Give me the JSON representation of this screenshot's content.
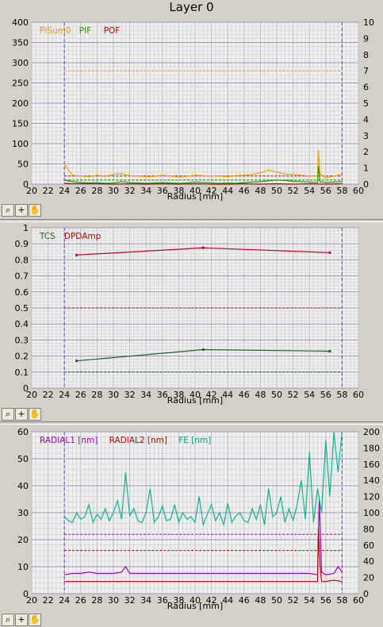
{
  "window": {
    "title": "Layer 0"
  },
  "toolbar_icons": [
    "zoom-icon",
    "crosshair-icon",
    "pan-hand-icon"
  ],
  "chart_data": [
    {
      "type": "line",
      "xlabel": "Radius [mm]",
      "xlim": [
        20,
        60
      ],
      "xticks": [
        20,
        22,
        24,
        26,
        28,
        30,
        32,
        34,
        36,
        38,
        40,
        42,
        44,
        46,
        48,
        50,
        52,
        54,
        56,
        58,
        60
      ],
      "ylim_left": [
        0,
        400
      ],
      "yticks_left": [
        0,
        50,
        100,
        150,
        200,
        250,
        300,
        350,
        400
      ],
      "ylim_right": [
        0,
        10
      ],
      "yticks_right": [
        0,
        1,
        2,
        3,
        4,
        5,
        6,
        7,
        8,
        9,
        10
      ],
      "grid": true,
      "vlines": [
        24,
        58
      ],
      "hlines": [
        {
          "y": 280,
          "axis": "left",
          "color": "#c8a040",
          "style": "dashed"
        },
        {
          "y": 20,
          "axis": "left",
          "color": "#c00000",
          "style": "dashed"
        },
        {
          "y": 10,
          "axis": "left",
          "color": "#008000",
          "style": "dashed"
        }
      ],
      "legend": [
        {
          "name": "PISum0",
          "color": "#e8a000"
        },
        {
          "name": "PIF",
          "color": "#20a000"
        },
        {
          "name": "POF",
          "color": "#c00000"
        }
      ],
      "series": [
        {
          "name": "PISum0",
          "axis": "left",
          "color": "#f0a000",
          "x": [
            24,
            24.5,
            25,
            26,
            27,
            28,
            29,
            30,
            31,
            32,
            33,
            34,
            35,
            36,
            37,
            38,
            39,
            40,
            41,
            42,
            43,
            44,
            45,
            46,
            47,
            48,
            49,
            50,
            51,
            52,
            53,
            54,
            55,
            55.1,
            55.3,
            56,
            57,
            58
          ],
          "y": [
            50,
            35,
            22,
            20,
            18,
            22,
            19,
            24,
            26,
            21,
            20,
            18,
            19,
            22,
            20,
            17,
            19,
            22,
            21,
            20,
            20,
            18,
            21,
            22,
            24,
            28,
            35,
            30,
            25,
            24,
            22,
            20,
            20,
            85,
            25,
            15,
            20,
            25
          ]
        },
        {
          "name": "PIF",
          "axis": "left",
          "color": "#20a000",
          "x": [
            24,
            25,
            26,
            27,
            28,
            29,
            30,
            31,
            32,
            33,
            34,
            35,
            36,
            37,
            38,
            39,
            40,
            41,
            42,
            43,
            44,
            45,
            46,
            47,
            48,
            49,
            50,
            51,
            52,
            53,
            54,
            55,
            55.1,
            55.3,
            56,
            57,
            58
          ],
          "y": [
            10,
            6,
            4,
            3,
            4,
            2,
            3,
            6,
            4,
            3,
            2,
            3,
            4,
            3,
            2,
            3,
            5,
            4,
            3,
            2,
            3,
            2,
            4,
            5,
            6,
            8,
            10,
            9,
            7,
            6,
            5,
            4,
            45,
            6,
            4,
            5,
            6
          ]
        },
        {
          "name": "POF",
          "axis": "left",
          "color": "#c00000",
          "x": [
            24,
            25,
            26,
            28,
            30,
            32,
            34,
            36,
            38,
            40,
            42,
            44,
            46,
            48,
            50,
            52,
            54,
            56,
            58
          ],
          "y": [
            2,
            1,
            1,
            1,
            0,
            1,
            0,
            1,
            0,
            1,
            0,
            0,
            1,
            0,
            1,
            0,
            1,
            0,
            1
          ]
        }
      ]
    },
    {
      "type": "line",
      "xlabel": "Radius [mm]",
      "xlim": [
        20,
        60
      ],
      "xticks": [
        20,
        22,
        24,
        26,
        28,
        30,
        32,
        34,
        36,
        38,
        40,
        42,
        44,
        46,
        48,
        50,
        52,
        54,
        56,
        58,
        60
      ],
      "ylim": [
        0,
        1
      ],
      "yticks": [
        0,
        0.1,
        0.2,
        0.3,
        0.4,
        0.5,
        0.6,
        0.7,
        0.8,
        0.9,
        1
      ],
      "grid": true,
      "vlines": [
        24,
        58
      ],
      "hlines": [
        {
          "y": 0.5,
          "color": "#c00000",
          "style": "dashed"
        },
        {
          "y": 0.1,
          "color": "#206020",
          "style": "dashed"
        }
      ],
      "legend": [
        {
          "name": "TCS",
          "color": "#206020"
        },
        {
          "name": "DPDAmp",
          "color": "#c00000"
        }
      ],
      "series": [
        {
          "name": "TCS",
          "color": "#206020",
          "x": [
            25.5,
            41,
            56.5
          ],
          "y": [
            0.17,
            0.24,
            0.23
          ]
        },
        {
          "name": "DPDAmp",
          "color": "#c00020",
          "x": [
            25.5,
            41,
            56.5
          ],
          "y": [
            0.83,
            0.875,
            0.845
          ]
        }
      ]
    },
    {
      "type": "line",
      "xlabel": "Radius [mm]",
      "xlim": [
        20,
        60
      ],
      "xticks": [
        20,
        22,
        24,
        26,
        28,
        30,
        32,
        34,
        36,
        38,
        40,
        42,
        44,
        46,
        48,
        50,
        52,
        54,
        56,
        58,
        60
      ],
      "ylim_left": [
        0,
        60
      ],
      "yticks_left": [
        0,
        10,
        20,
        30,
        40,
        50,
        60
      ],
      "ylim_right": [
        0,
        200
      ],
      "yticks_right": [
        0,
        20,
        40,
        60,
        80,
        100,
        120,
        140,
        160,
        180,
        200
      ],
      "grid": true,
      "vlines": [
        24,
        58
      ],
      "hlines": [
        {
          "y": 22,
          "axis": "left",
          "color": "#a000c0",
          "style": "dashed"
        },
        {
          "y": 16,
          "axis": "left",
          "color": "#c00000",
          "style": "dashed"
        }
      ],
      "legend": [
        {
          "name": "RADIAL1 [nm]",
          "color": "#a000c0"
        },
        {
          "name": "RADIAL2 [nm]",
          "color": "#c00000"
        },
        {
          "name": "FE [nm]",
          "color": "#00a080"
        }
      ],
      "series": [
        {
          "name": "RADIAL1 [nm]",
          "axis": "left",
          "color": "#a000c0",
          "x": [
            24,
            25,
            26,
            27,
            28,
            29,
            30,
            31,
            31.5,
            32,
            34,
            36,
            38,
            40,
            42,
            44,
            46,
            48,
            50,
            52,
            54,
            55,
            55.2,
            55.5,
            56,
            57,
            57.5,
            58
          ],
          "y": [
            7,
            7.5,
            7.5,
            8,
            7.5,
            7.5,
            7.5,
            8,
            10,
            7.5,
            7.5,
            7.5,
            7.5,
            7.5,
            7.5,
            7.5,
            7.5,
            7.5,
            7.5,
            7.5,
            7.5,
            7,
            35,
            8,
            7,
            7.5,
            10,
            8
          ]
        },
        {
          "name": "RADIAL2 [nm]",
          "axis": "left",
          "color": "#c00000",
          "x": [
            24,
            26,
            28,
            30,
            32,
            34,
            36,
            38,
            40,
            42,
            44,
            46,
            48,
            50,
            52,
            54,
            55,
            55.1,
            55.3,
            55.5,
            56,
            57,
            58
          ],
          "y": [
            4.5,
            4.5,
            4.5,
            4.5,
            4.5,
            4.5,
            4.5,
            4.5,
            4.5,
            4.5,
            4.5,
            4.5,
            4.5,
            4.5,
            4.5,
            4.5,
            4.5,
            24,
            10,
            4.5,
            4.5,
            5,
            4.5
          ]
        },
        {
          "name": "FE [nm]",
          "axis": "right",
          "color": "#10b090",
          "x": [
            24,
            24.5,
            25,
            25.5,
            26,
            26.5,
            27,
            27.5,
            28,
            28.5,
            29,
            29.5,
            30,
            30.5,
            31,
            31.5,
            32,
            32.5,
            33,
            33.5,
            34,
            34.5,
            35,
            35.5,
            36,
            36.5,
            37,
            37.5,
            38,
            38.5,
            39,
            39.5,
            40,
            40.5,
            41,
            41.5,
            42,
            42.5,
            43,
            43.5,
            44,
            44.5,
            45,
            45.5,
            46,
            46.5,
            47,
            47.5,
            48,
            48.5,
            49,
            49.5,
            50,
            50.5,
            51,
            51.5,
            52,
            52.5,
            53,
            53.5,
            54,
            54.5,
            55,
            55.5,
            56,
            56.5,
            57,
            57.5,
            58
          ],
          "y": [
            95,
            90,
            88,
            100,
            92,
            95,
            110,
            88,
            98,
            92,
            105,
            90,
            100,
            115,
            92,
            150,
            96,
            105,
            90,
            88,
            100,
            130,
            88,
            95,
            108,
            90,
            92,
            110,
            88,
            100,
            92,
            95,
            88,
            120,
            85,
            98,
            110,
            90,
            100,
            85,
            112,
            88,
            96,
            100,
            90,
            88,
            105,
            92,
            110,
            85,
            130,
            95,
            100,
            120,
            88,
            105,
            90,
            110,
            140,
            92,
            175,
            88,
            130,
            100,
            190,
            120,
            200,
            150,
            200
          ]
        }
      ]
    }
  ]
}
